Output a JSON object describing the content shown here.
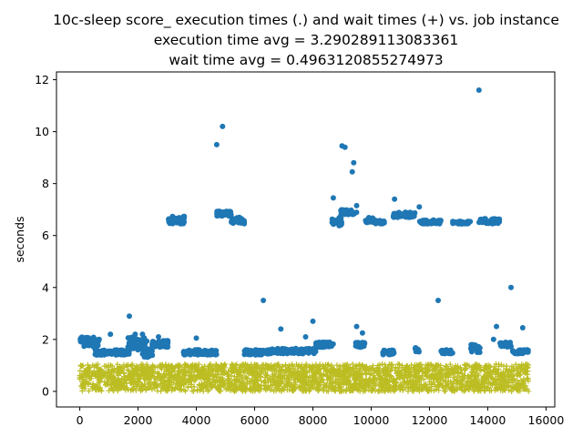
{
  "chart_data": {
    "type": "scatter",
    "title_lines": [
      "10c-sleep score_ execution times (.) and wait times (+) vs. job instance",
      "execution time avg = 3.290289113083361",
      "wait time avg = 0.4963120855274973"
    ],
    "xlabel": "",
    "ylabel": "seconds",
    "xlim": [
      -800,
      16300
    ],
    "ylim": [
      -0.6,
      12.3
    ],
    "x_ticks": [
      0,
      2000,
      4000,
      6000,
      8000,
      10000,
      12000,
      14000,
      16000
    ],
    "y_ticks": [
      0,
      2,
      4,
      6,
      8,
      10,
      12
    ],
    "x_range_of_jobs": [
      0,
      15400
    ],
    "grid": false,
    "colors": {
      "execution": "#1f77b4",
      "wait": "#bcbd22"
    },
    "series": [
      {
        "marker": "dot",
        "clusters": [
          {
            "x": [
              0,
              700
            ],
            "y": [
              1.7,
              2.1
            ]
          },
          {
            "x": [
              500,
              1700
            ],
            "y": [
              1.4,
              1.6
            ]
          },
          {
            "x": [
              1650,
              2300
            ],
            "y": [
              1.6,
              2.1
            ]
          },
          {
            "x": [
              2150,
              2500
            ],
            "y": [
              1.3,
              1.7
            ]
          },
          {
            "x": [
              2450,
              3050
            ],
            "y": [
              1.7,
              1.95
            ]
          },
          {
            "x": [
              3000,
              3600
            ],
            "y": [
              6.45,
              6.75
            ]
          },
          {
            "x": [
              3550,
              4700
            ],
            "y": [
              1.4,
              1.6
            ]
          },
          {
            "x": [
              4700,
              5200
            ],
            "y": [
              6.75,
              6.95
            ]
          },
          {
            "x": [
              5200,
              5700
            ],
            "y": [
              6.45,
              6.7
            ]
          },
          {
            "x": [
              5650,
              6500
            ],
            "y": [
              1.4,
              1.6
            ]
          },
          {
            "x": [
              6500,
              8100
            ],
            "y": [
              1.45,
              1.65
            ]
          },
          {
            "x": [
              8100,
              8700
            ],
            "y": [
              1.7,
              1.9
            ]
          },
          {
            "x": [
              8650,
              9000
            ],
            "y": [
              6.35,
              6.7
            ]
          },
          {
            "x": [
              8950,
              9500
            ],
            "y": [
              6.8,
              7.0
            ]
          },
          {
            "x": [
              9450,
              9800
            ],
            "y": [
              1.7,
              1.9
            ]
          },
          {
            "x": [
              9800,
              10100
            ],
            "y": [
              6.5,
              6.7
            ]
          },
          {
            "x": [
              10100,
              10450
            ],
            "y": [
              6.45,
              6.6
            ]
          },
          {
            "x": [
              10400,
              10800
            ],
            "y": [
              1.4,
              1.6
            ]
          },
          {
            "x": [
              10750,
              11500
            ],
            "y": [
              6.7,
              6.9
            ]
          },
          {
            "x": [
              11500,
              11650
            ],
            "y": [
              1.5,
              1.7
            ]
          },
          {
            "x": [
              11650,
              12400
            ],
            "y": [
              6.45,
              6.6
            ]
          },
          {
            "x": [
              12400,
              12800
            ],
            "y": [
              1.45,
              1.6
            ]
          },
          {
            "x": [
              12800,
              13400
            ],
            "y": [
              6.45,
              6.55
            ]
          },
          {
            "x": [
              13400,
              13750
            ],
            "y": [
              1.5,
              1.8
            ]
          },
          {
            "x": [
              13700,
              14400
            ],
            "y": [
              6.45,
              6.65
            ]
          },
          {
            "x": [
              14400,
              14850
            ],
            "y": [
              1.7,
              1.9
            ]
          },
          {
            "x": [
              14850,
              15400
            ],
            "y": [
              1.45,
              1.6
            ]
          }
        ],
        "outliers": [
          [
            1700,
            2.9
          ],
          [
            1050,
            2.2
          ],
          [
            1900,
            2.2
          ],
          [
            2150,
            2.2
          ],
          [
            2700,
            2.1
          ],
          [
            4000,
            2.05
          ],
          [
            4700,
            9.5
          ],
          [
            4900,
            10.2
          ],
          [
            6300,
            3.5
          ],
          [
            6900,
            2.4
          ],
          [
            7750,
            2.1
          ],
          [
            8000,
            2.7
          ],
          [
            8700,
            7.45
          ],
          [
            9000,
            9.45
          ],
          [
            9100,
            9.4
          ],
          [
            9350,
            8.45
          ],
          [
            9400,
            8.8
          ],
          [
            9500,
            7.15
          ],
          [
            9500,
            2.5
          ],
          [
            9700,
            2.25
          ],
          [
            10800,
            7.4
          ],
          [
            11650,
            7.1
          ],
          [
            12300,
            3.5
          ],
          [
            13700,
            11.6
          ],
          [
            14300,
            2.5
          ],
          [
            14800,
            4.0
          ],
          [
            15200,
            2.45
          ],
          [
            14200,
            2.0
          ]
        ]
      },
      {
        "marker": "plus",
        "x_range": [
          0,
          15400
        ],
        "y_range": [
          0,
          1.05
        ]
      }
    ]
  }
}
